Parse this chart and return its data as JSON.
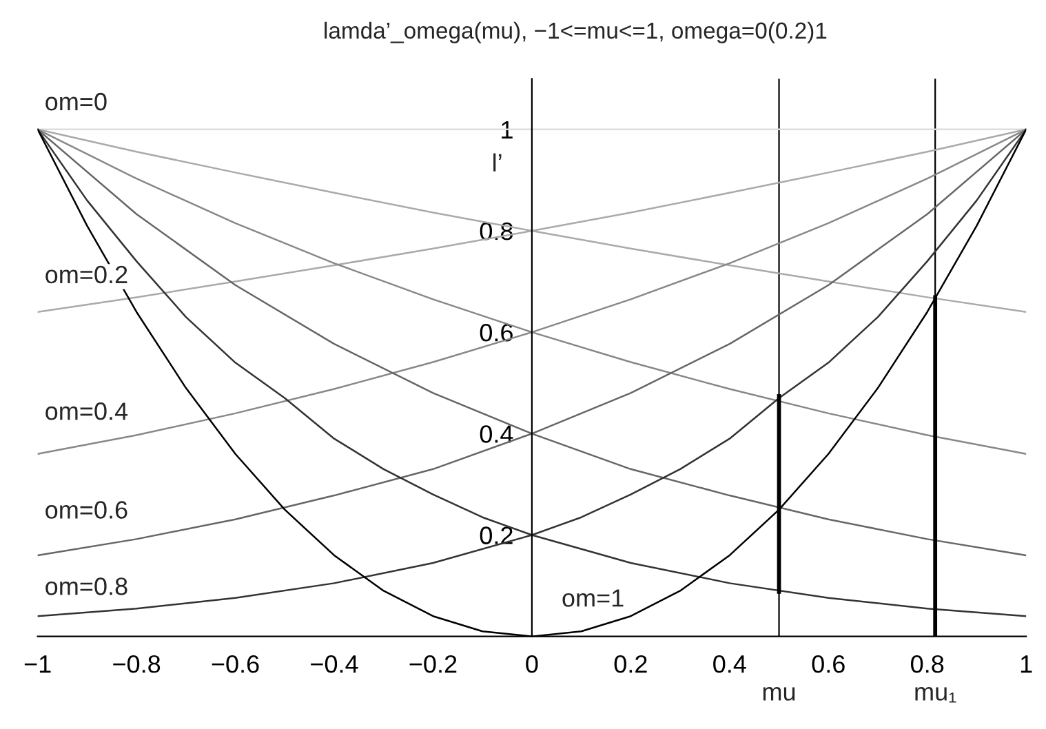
{
  "chart_data": {
    "type": "line",
    "title": "lamda’_omega(mu), −1<=mu<=1, omega=0(0.2)1",
    "ylabel": "l’",
    "xlim": [
      -1,
      1
    ],
    "ylim": [
      0,
      1.1
    ],
    "xticks": [
      {
        "value": -1,
        "label": "−1"
      },
      {
        "value": -0.8,
        "label": "−0.8"
      },
      {
        "value": -0.6,
        "label": "−0.6"
      },
      {
        "value": -0.4,
        "label": "−0.4"
      },
      {
        "value": -0.2,
        "label": "−0.2"
      },
      0,
      0.2,
      0.4,
      0.6,
      0.8,
      1
    ],
    "yticks": [
      0.2,
      0.4,
      0.6,
      0.8,
      1
    ],
    "grid": false,
    "legend": false,
    "marker": "none",
    "line_style": "solid",
    "series": [
      {
        "color": "#dddddd",
        "x": [
          -1,
          1
        ],
        "values": [
          1,
          1
        ]
      },
      {
        "color": "#aaaaaa",
        "x": [
          -1,
          -0.8,
          -0.6,
          -0.4,
          -0.2,
          0,
          0.2,
          0.4,
          0.6,
          0.8,
          1
        ],
        "values": [
          1,
          0.956,
          0.915,
          0.875,
          0.836,
          0.8,
          0.836,
          0.875,
          0.915,
          0.956,
          1
        ]
      },
      {
        "color": "#aaaaaa",
        "x": [
          -1,
          -0.8,
          -0.6,
          -0.4,
          -0.2,
          0,
          0.2,
          0.4,
          0.6,
          0.8,
          1
        ],
        "values": [
          0.64,
          0.669,
          0.7,
          0.732,
          0.765,
          0.8,
          0.765,
          0.732,
          0.7,
          0.669,
          0.64
        ]
      },
      {
        "color": "#888888",
        "x": [
          -1,
          -0.8,
          -0.6,
          -0.4,
          -0.2,
          0,
          0.2,
          0.4,
          0.6,
          0.8,
          1
        ],
        "values": [
          1,
          0.903,
          0.815,
          0.736,
          0.665,
          0.6,
          0.665,
          0.736,
          0.815,
          0.903,
          1
        ]
      },
      {
        "color": "#888888",
        "x": [
          -1,
          -0.8,
          -0.6,
          -0.4,
          -0.2,
          0,
          0.2,
          0.4,
          0.6,
          0.8,
          1
        ],
        "values": [
          0.36,
          0.397,
          0.44,
          0.488,
          0.541,
          0.6,
          0.541,
          0.488,
          0.44,
          0.397,
          0.36
        ]
      },
      {
        "color": "#666666",
        "x": [
          -1,
          -0.8,
          -0.6,
          -0.4,
          -0.2,
          0,
          0.2,
          0.4,
          0.6,
          0.8,
          1
        ],
        "values": [
          1,
          0.833,
          0.693,
          0.577,
          0.48,
          0.4,
          0.48,
          0.577,
          0.693,
          0.833,
          1
        ]
      },
      {
        "color": "#666666",
        "x": [
          -1,
          -0.8,
          -0.6,
          -0.4,
          -0.2,
          0,
          0.2,
          0.4,
          0.6,
          0.8,
          1
        ],
        "values": [
          0.16,
          0.192,
          0.231,
          0.278,
          0.33,
          0.4,
          0.33,
          0.278,
          0.231,
          0.192,
          0.16
        ]
      },
      {
        "color": "#333333",
        "x": [
          -1,
          -0.9,
          -0.8,
          -0.7,
          -0.6,
          -0.5,
          -0.4,
          -0.3,
          -0.2,
          -0.1,
          0,
          0.1,
          0.2,
          0.3,
          0.4,
          0.5,
          0.6,
          0.7,
          0.8,
          0.9,
          1
        ],
        "values": [
          1,
          0.86,
          0.74,
          0.63,
          0.54,
          0.47,
          0.39,
          0.33,
          0.28,
          0.235,
          0.2,
          0.235,
          0.28,
          0.33,
          0.39,
          0.47,
          0.54,
          0.63,
          0.74,
          0.86,
          1
        ]
      },
      {
        "color": "#333333",
        "x": [
          -1,
          -0.8,
          -0.6,
          -0.4,
          -0.2,
          0,
          0.2,
          0.4,
          0.6,
          0.8,
          1
        ],
        "values": [
          0.04,
          0.055,
          0.076,
          0.105,
          0.145,
          0.2,
          0.145,
          0.105,
          0.076,
          0.055,
          0.04
        ]
      },
      {
        "color": "#000000",
        "x": [
          -1,
          -0.9,
          -0.8,
          -0.7,
          -0.6,
          -0.5,
          -0.4,
          -0.3,
          -0.2,
          -0.1,
          0,
          0.1,
          0.2,
          0.3,
          0.4,
          0.5,
          0.6,
          0.7,
          0.8,
          0.9,
          1
        ],
        "values": [
          1,
          0.81,
          0.64,
          0.49,
          0.36,
          0.25,
          0.16,
          0.09,
          0.04,
          0.01,
          0,
          0.01,
          0.04,
          0.09,
          0.16,
          0.25,
          0.36,
          0.49,
          0.64,
          0.81,
          1
        ]
      },
      {
        "type": "bar",
        "color": "#000000",
        "x": [
          0.5,
          0.816
        ],
        "base": [
          0.084,
          0
        ],
        "values": [
          0.394,
          0.673
        ]
      }
    ],
    "ref_lines": [
      {
        "axis": "x",
        "value": 0.5,
        "label": "mu",
        "color": "#000000"
      },
      {
        "axis": "x",
        "value": 0.816,
        "label": "mu₁",
        "color": "#000000"
      }
    ],
    "annotations": [
      "om=0",
      "om=0.2",
      "om=0.4",
      "om=0.6",
      "om=0.8",
      "om=1"
    ]
  }
}
